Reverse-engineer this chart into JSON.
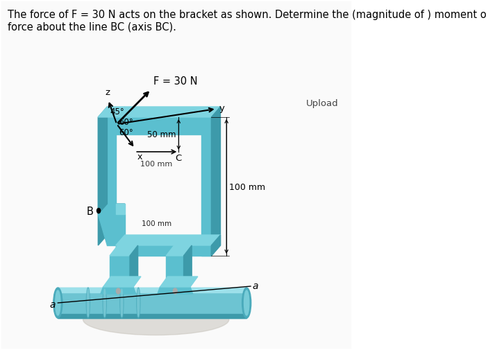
{
  "bg_color": "#f0eeeb",
  "title_text": "The force of F = 30 N acts on the bracket as shown. Determine the (magnitude of ) moment of the\nforce about the line BC (axis BC).",
  "title_fontsize": 10.5,
  "upload_text": "Upload",
  "force_label": "F = 30 N",
  "angle1": "45°",
  "angle2": "60°",
  "angle3": "60°",
  "dim1": "50 mm",
  "dim2": "100 mm",
  "dim3": "100 mm",
  "dim4": "100 mm",
  "label_B": "B",
  "label_C": "C",
  "label_y": "y",
  "label_z": "z",
  "label_x": "x",
  "label_a1": "a",
  "label_a2": "a",
  "bracket_main": "#5bbfcf",
  "bracket_light": "#7ed4e0",
  "bracket_dark": "#3d9aaa",
  "bracket_side": "#4aaabb",
  "shadow_color": "#c8c4bc"
}
